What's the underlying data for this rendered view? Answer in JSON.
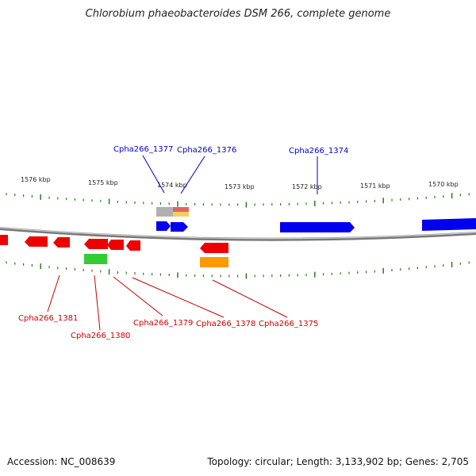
{
  "title": "Chlorobium phaeobacteroides DSM 266, complete genome",
  "footer": {
    "accession": "Accession: NC_008639",
    "summary": "Topology: circular; Length: 3,133,902 bp; Genes: 2,705"
  },
  "kbp_labels": [
    "1576 kbp",
    "1575 kbp",
    "1574 kbp",
    "1573 kbp",
    "1572 kbp",
    "1571 kbp",
    "1570 kbp"
  ],
  "gene_labels_top": [
    "Cpha266_1377",
    "Cpha266_1376",
    "Cpha266_1374"
  ],
  "gene_labels_bottom": [
    "Cpha266_1381",
    "Cpha266_1380",
    "Cpha266_1379",
    "Cpha266_1378",
    "Cpha266_1375"
  ],
  "colors": {
    "forward": "#0000ee",
    "reverse": "#ee0000",
    "label_forward": "#0000cc",
    "label_reverse": "#cc0000",
    "tick": "#2d7a1e",
    "backbone": "#888888",
    "rna_green": "#33cc33",
    "orange": "#ff9900",
    "grey": "#aaaaaa"
  }
}
